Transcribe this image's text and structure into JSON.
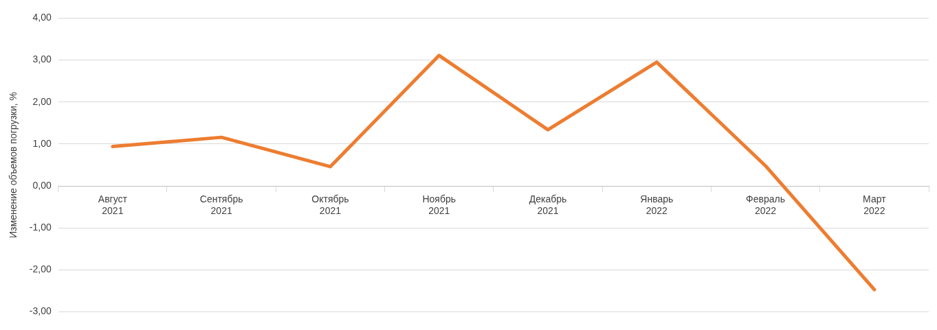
{
  "chart_data": {
    "type": "line",
    "ylabel": "Изменение объемов погрузки, %",
    "categories": [
      "Август\n2021",
      "Сентябрь\n2021",
      "Октябрь\n2021",
      "Ноябрь\n2021",
      "Декабрь\n2021",
      "Январь\n2022",
      "Февраль\n2022",
      "Март\n2022"
    ],
    "series": [
      {
        "color": "#ed7d31",
        "values": [
          0.94,
          1.16,
          0.46,
          3.11,
          1.34,
          2.95,
          0.48,
          -2.47
        ]
      }
    ],
    "ylim": [
      -3,
      4
    ],
    "yticks": [
      {
        "value": -3,
        "label": "-3,00"
      },
      {
        "value": -2,
        "label": "-2,00"
      },
      {
        "value": -1,
        "label": "-1,00"
      },
      {
        "value": 0,
        "label": "0,00"
      },
      {
        "value": 1,
        "label": "1,00"
      },
      {
        "value": 2,
        "label": "2,00"
      },
      {
        "value": 3,
        "label": "3,00"
      },
      {
        "value": 4,
        "label": "4,00"
      }
    ],
    "grid": "y",
    "legend": false,
    "marker": "none",
    "line_style": "solid"
  }
}
